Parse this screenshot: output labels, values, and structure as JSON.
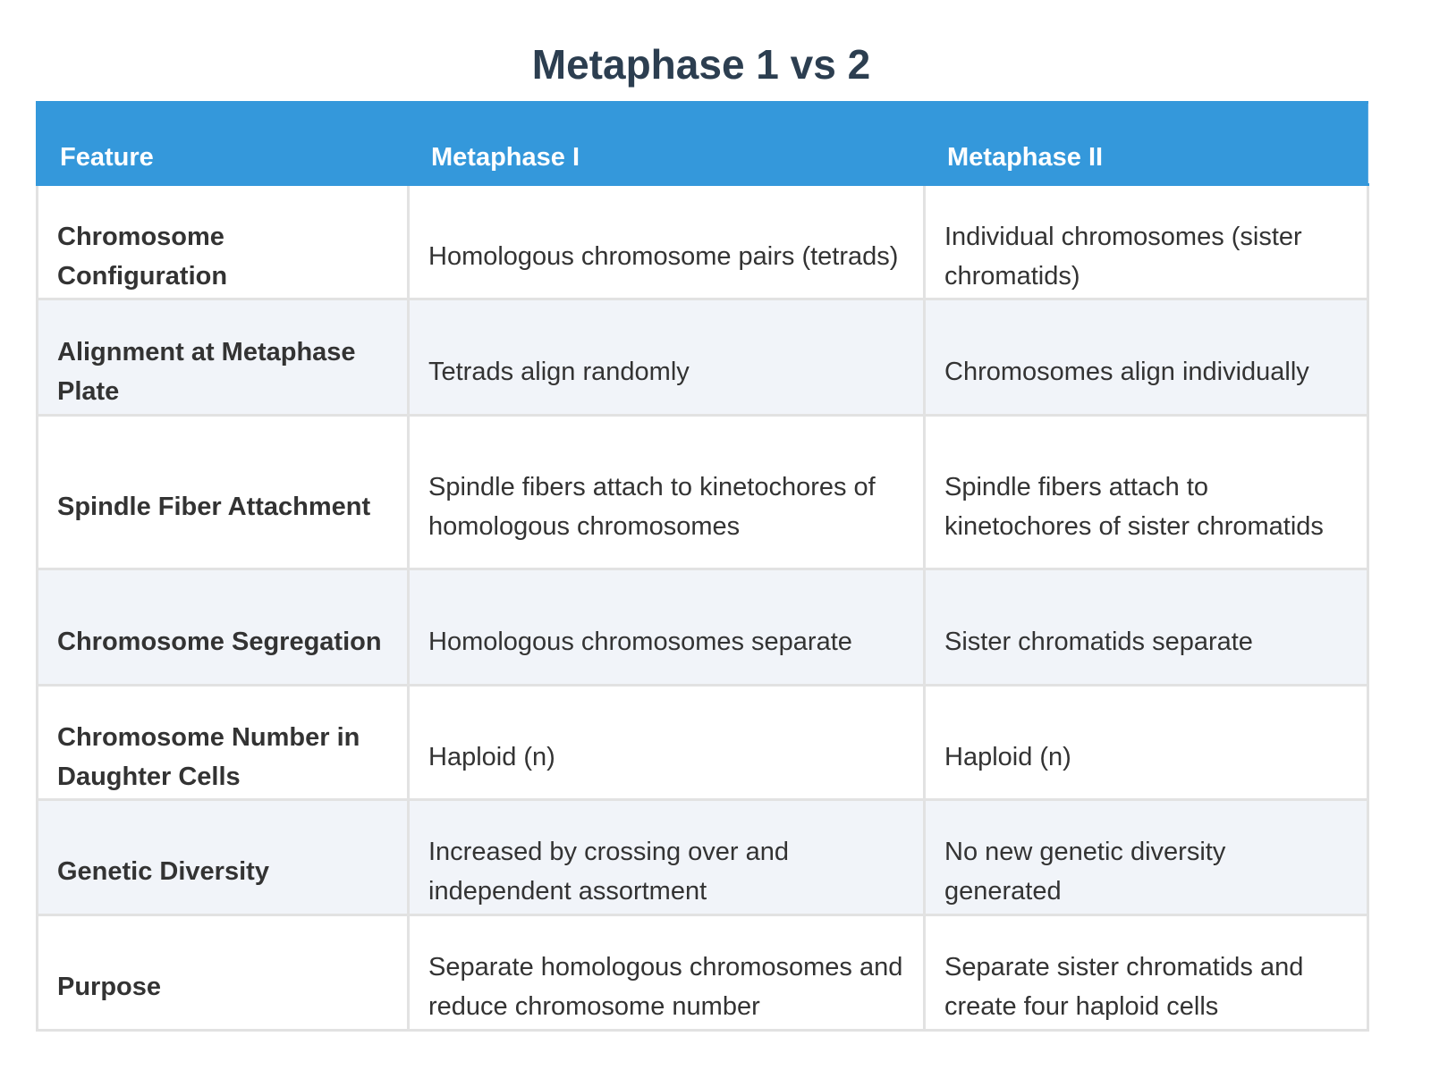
{
  "title": "Metaphase 1 vs 2",
  "table": {
    "headers": [
      "Feature",
      "Metaphase I",
      "Metaphase II"
    ],
    "rows": [
      [
        "Chromosome Configuration",
        "Homologous chromosome pairs (tetrads)",
        "Individual chromosomes (sister chromatids)"
      ],
      [
        "Alignment at Metaphase Plate",
        "Tetrads align randomly",
        "Chromosomes align individually"
      ],
      [
        "Spindle Fiber Attachment",
        "Spindle fibers attach to kinetochores of homologous chromosomes",
        "Spindle fibers attach to kinetochores of sister chromatids"
      ],
      [
        "Chromosome Segregation",
        "Homologous chromosomes separate",
        "Sister chromatids separate"
      ],
      [
        "Chromosome Number in Daughter Cells",
        "Haploid (n)",
        "Haploid (n)"
      ],
      [
        "Genetic Diversity",
        "Increased by crossing over and independent assortment",
        "No new genetic diversity generated"
      ],
      [
        "Purpose",
        "Separate homologous chromosomes and reduce chromosome number",
        "Separate sister chromatids and create four haploid cells"
      ]
    ]
  },
  "colors": {
    "header_bg": "#3498db",
    "title": "#2c3e50",
    "alt_row": "#f1f4f9",
    "text": "#333333"
  }
}
